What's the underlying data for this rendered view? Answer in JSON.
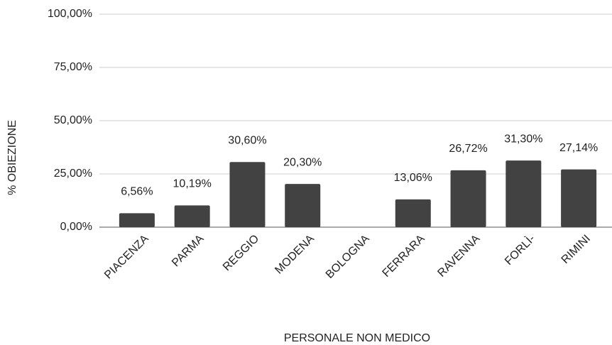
{
  "chart_data": {
    "type": "bar",
    "x_label": "PERSONALE NON MEDICO",
    "y_label": "% OBIEZIONE",
    "categories": [
      "PIACENZA",
      "PARMA",
      "REGGIO",
      "MODENA",
      "BOLOGNA",
      "FERRARA",
      "RAVENNA",
      "FORLÌ-",
      "RIMINI"
    ],
    "values": [
      6.56,
      10.19,
      30.6,
      20.3,
      null,
      13.06,
      26.72,
      31.3,
      27.14
    ],
    "value_labels": [
      "6,56%",
      "10,19%",
      "30,60%",
      "20,30%",
      null,
      "13,06%",
      "26,72%",
      "31,30%",
      "27,14%"
    ],
    "color": "#424242",
    "ylim": [
      0,
      100
    ],
    "yticks": [
      {
        "value": 0,
        "label": "0,00%"
      },
      {
        "value": 25,
        "label": "25,00%"
      },
      {
        "value": 50,
        "label": "50,00%"
      },
      {
        "value": 75,
        "label": "75,00%"
      },
      {
        "value": 100,
        "label": "100,00%"
      }
    ],
    "grid": true
  }
}
